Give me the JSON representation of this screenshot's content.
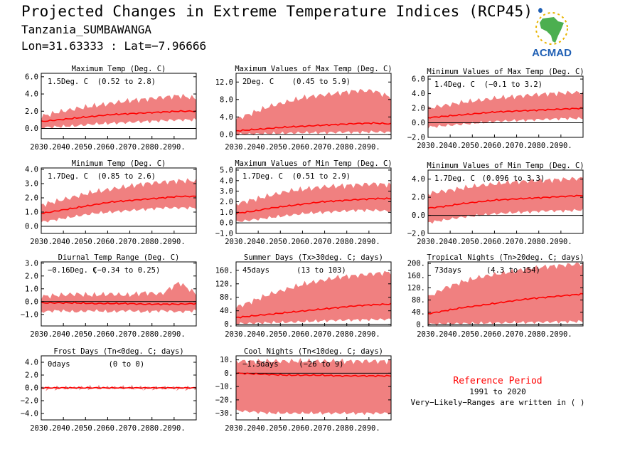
{
  "header": {
    "title": "Projected Changes in Extreme Temperature Indices (RCP45)",
    "location": "Tanzania_SUMBAWANGA",
    "coordinates": "Lon=31.63333 : Lat=−7.96666"
  },
  "logo": {
    "text": "ACMAD",
    "icon": "africa-map-icon",
    "color": "#1f5fb4",
    "map_color": "#4caf50"
  },
  "colors": {
    "band": "#f08080",
    "line": "#ff0000",
    "zero_line": "#000000"
  },
  "reference": {
    "title": "Reference Period",
    "period": "1991 to 2020",
    "note": "Very−Likely−Ranges are written in ( )"
  },
  "chart_data": [
    {
      "type": "area",
      "title": "Maximum Temp (Deg. C)",
      "value": "1.5Deg. C",
      "range": "(0.52 to 2.8)",
      "xticks": [
        "2030.",
        "2040.",
        "2050.",
        "2060.",
        "2070.",
        "2080.",
        "2090."
      ],
      "yticks": [
        "0.0",
        "2.0",
        "4.0",
        "6.0"
      ],
      "ylim": [
        -1.2,
        6.4
      ],
      "median": [
        0.8,
        1.0,
        1.2,
        1.4,
        1.6,
        1.7,
        1.8,
        1.9,
        2.0,
        2.0
      ],
      "lower": [
        0.1,
        0.2,
        0.3,
        0.5,
        0.6,
        0.7,
        0.8,
        0.9,
        1.0,
        1.0
      ],
      "upper": [
        1.4,
        1.9,
        2.3,
        2.6,
        2.9,
        3.2,
        3.4,
        3.6,
        3.8,
        3.5
      ]
    },
    {
      "type": "area",
      "title": "Maximum Values of Max Temp (Deg. C)",
      "value": "2Deg. C",
      "range": "(0.45 to 5.9)",
      "xticks": [
        "2030.",
        "2040.",
        "2050.",
        "2060.",
        "2070.",
        "2080.",
        "2090."
      ],
      "yticks": [
        "0.0",
        "4.0",
        "8.0",
        "12.0"
      ],
      "ylim": [
        -1.0,
        14.0
      ],
      "median": [
        0.8,
        1.1,
        1.4,
        1.7,
        1.9,
        2.1,
        2.3,
        2.5,
        2.6,
        2.4
      ],
      "lower": [
        0.0,
        0.1,
        0.2,
        0.3,
        0.4,
        0.4,
        0.5,
        0.5,
        0.6,
        0.5
      ],
      "upper": [
        3.5,
        5.0,
        6.5,
        7.5,
        8.5,
        9.0,
        9.5,
        10.0,
        10.0,
        8.5
      ]
    },
    {
      "type": "area",
      "title": "Minimum Values of Max Temp (Deg. C)",
      "value": "1.4Deg. C",
      "range": "(−0.1 to 3.2)",
      "xticks": [
        "2030.",
        "2040.",
        "2050.",
        "2060.",
        "2070.",
        "2080.",
        "2090."
      ],
      "yticks": [
        "−2.0",
        "0.0",
        "2.0",
        "4.0",
        "6.0"
      ],
      "ylim": [
        -2.0,
        6.4
      ],
      "median": [
        0.7,
        0.9,
        1.1,
        1.3,
        1.5,
        1.6,
        1.7,
        1.8,
        1.9,
        2.0
      ],
      "lower": [
        -0.6,
        -0.4,
        -0.2,
        0.0,
        0.2,
        0.3,
        0.4,
        0.5,
        0.6,
        0.6
      ],
      "upper": [
        2.0,
        2.4,
        2.8,
        3.1,
        3.4,
        3.6,
        3.8,
        4.0,
        4.1,
        4.2
      ]
    },
    {
      "type": "area",
      "title": "Minimum Temp (Deg. C)",
      "value": "1.7Deg. C",
      "range": "(0.85 to 2.6)",
      "xticks": [
        "2030.",
        "2040.",
        "2050.",
        "2060.",
        "2070.",
        "2080.",
        "2090."
      ],
      "yticks": [
        "0.0",
        "1.0",
        "2.0",
        "3.0",
        "4.0"
      ],
      "ylim": [
        -0.5,
        4.1
      ],
      "median": [
        0.9,
        1.1,
        1.3,
        1.5,
        1.7,
        1.8,
        1.9,
        2.0,
        2.1,
        2.1
      ],
      "lower": [
        0.3,
        0.5,
        0.7,
        0.9,
        1.0,
        1.1,
        1.2,
        1.3,
        1.3,
        1.3
      ],
      "upper": [
        1.5,
        1.8,
        2.1,
        2.4,
        2.6,
        2.8,
        3.0,
        3.1,
        3.2,
        3.2
      ]
    },
    {
      "type": "area",
      "title": "Maximum Values of Min Temp (Deg. C)",
      "value": "1.7Deg. C",
      "range": "(0.51 to 2.9)",
      "xticks": [
        "2030.",
        "2040.",
        "2050.",
        "2060.",
        "2070.",
        "2080.",
        "2090."
      ],
      "yticks": [
        "−1.0",
        "0.0",
        "1.0",
        "2.0",
        "3.0",
        "4.0",
        "5.0"
      ],
      "ylim": [
        -1.0,
        5.2
      ],
      "median": [
        0.9,
        1.1,
        1.4,
        1.6,
        1.8,
        2.0,
        2.1,
        2.2,
        2.3,
        2.3
      ],
      "lower": [
        0.1,
        0.3,
        0.5,
        0.7,
        0.9,
        1.0,
        1.1,
        1.2,
        1.2,
        1.1
      ],
      "upper": [
        1.8,
        2.2,
        2.6,
        3.0,
        3.2,
        3.4,
        3.5,
        3.6,
        3.7,
        3.6
      ]
    },
    {
      "type": "area",
      "title": "Minimum Values of Min Temp (Deg. C)",
      "value": "1.7Deg. C",
      "range": "(0.096 to 3.3)",
      "xticks": [
        "2030.",
        "2040.",
        "2050.",
        "2060.",
        "2070.",
        "2080.",
        "2090."
      ],
      "yticks": [
        "−2.0",
        "0.0",
        "2.0",
        "4.0"
      ],
      "ylim": [
        -2.0,
        5.0
      ],
      "median": [
        0.8,
        1.0,
        1.3,
        1.5,
        1.7,
        1.8,
        1.9,
        2.0,
        2.1,
        2.2
      ],
      "lower": [
        -0.8,
        -0.5,
        -0.2,
        0.0,
        0.2,
        0.3,
        0.4,
        0.5,
        0.5,
        0.6
      ],
      "upper": [
        2.4,
        2.7,
        3.0,
        3.3,
        3.5,
        3.7,
        3.8,
        3.9,
        4.0,
        4.1
      ]
    },
    {
      "type": "area",
      "title": "Diurnal Temp Range (Deg. C)",
      "value": "−0.16Deg. C",
      "range": "(−0.34 to 0.25)",
      "xticks": [
        "2030.",
        "2040.",
        "2050.",
        "2060.",
        "2070.",
        "2080.",
        "2090."
      ],
      "yticks": [
        "−1.0",
        "0.0",
        "1.0",
        "2.0",
        "3.0"
      ],
      "ylim": [
        -1.9,
        3.1
      ],
      "median": [
        -0.1,
        -0.1,
        -0.1,
        -0.15,
        -0.15,
        -0.15,
        -0.2,
        -0.2,
        -0.2,
        -0.15
      ],
      "lower": [
        -0.8,
        -0.7,
        -0.8,
        -0.7,
        -0.8,
        -0.7,
        -0.8,
        -0.7,
        -0.8,
        -0.7
      ],
      "upper": [
        0.4,
        0.5,
        0.6,
        0.5,
        0.6,
        0.5,
        0.7,
        0.6,
        1.5,
        0.6
      ]
    },
    {
      "type": "area",
      "title": "Summer Days (Tx>30deg. C; days)",
      "value": "45days",
      "range": "(13 to 103)",
      "xticks": [
        "2030.",
        "2040.",
        "2050.",
        "2060.",
        "2070.",
        "2080.",
        "2090."
      ],
      "yticks": [
        "0.",
        "40.",
        "80.",
        "120.",
        "160."
      ],
      "ylim": [
        -5,
        185
      ],
      "median": [
        20,
        25,
        30,
        35,
        40,
        45,
        50,
        55,
        58,
        60
      ],
      "lower": [
        2,
        3,
        5,
        6,
        8,
        10,
        12,
        13,
        14,
        15
      ],
      "upper": [
        50,
        70,
        90,
        105,
        120,
        130,
        140,
        145,
        150,
        155
      ]
    },
    {
      "type": "area",
      "title": "Tropical Nights (Tn>20deg. C; days)",
      "value": "73days",
      "range": "(4.3 to 154)",
      "xticks": [
        "2030.",
        "2040.",
        "2050.",
        "2060.",
        "2070.",
        "2080.",
        "2090."
      ],
      "yticks": [
        "0.",
        "40.",
        "80.",
        "120.",
        "160.",
        "200."
      ],
      "ylim": [
        -5,
        205
      ],
      "median": [
        35,
        45,
        55,
        62,
        70,
        78,
        85,
        90,
        95,
        100
      ],
      "lower": [
        1,
        2,
        3,
        4,
        5,
        6,
        7,
        8,
        9,
        10
      ],
      "upper": [
        90,
        120,
        140,
        155,
        165,
        175,
        185,
        190,
        195,
        200
      ]
    },
    {
      "type": "area",
      "title": "Frost Days (Tn<0deg. C; days)",
      "value": "0days",
      "range": "(0 to 0)",
      "xticks": [
        "2030.",
        "2040.",
        "2050.",
        "2060.",
        "2070.",
        "2080.",
        "2090."
      ],
      "yticks": [
        "−4.0",
        "−2.0",
        "0.0",
        "2.0",
        "4.0"
      ],
      "ylim": [
        -5,
        5
      ],
      "median": [
        0,
        0,
        0,
        0,
        0,
        0,
        0,
        0,
        0,
        0
      ],
      "lower": [
        0,
        0,
        0,
        0,
        0,
        0,
        0,
        0,
        0,
        0
      ],
      "upper": [
        0,
        0,
        0,
        0,
        0,
        0,
        0,
        0,
        0,
        0
      ]
    },
    {
      "type": "area",
      "title": "Cool Nights (Tn<10deg. C; days)",
      "value": "−1.5days",
      "range": "(−26 to 9)",
      "xticks": [
        "2030.",
        "2040.",
        "2050.",
        "2060.",
        "2070.",
        "2080.",
        "2090."
      ],
      "yticks": [
        "−30.",
        "−20.",
        "−10.",
        "0.",
        "10."
      ],
      "ylim": [
        -35,
        13
      ],
      "median": [
        0,
        -0.5,
        -1.0,
        -1.5,
        -1.5,
        -1.5,
        -2.0,
        -2.0,
        -2.0,
        -2.0
      ],
      "lower": [
        -28,
        -29,
        -30,
        -30,
        -30,
        -30,
        -30,
        -30,
        -30,
        -30
      ],
      "upper": [
        9,
        9,
        9,
        9,
        9,
        9,
        9,
        9,
        9,
        9
      ]
    }
  ]
}
